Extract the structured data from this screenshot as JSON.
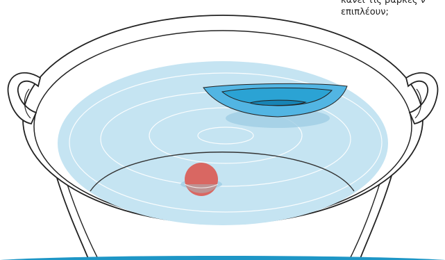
{
  "question": {
    "line1": "κάνει τις βάρκες ν",
    "line2": "επιπλέουν;"
  },
  "colors": {
    "water": "#c5e4f2",
    "boat_outer": "#52b5e3",
    "boat_inner": "#2ba3d4",
    "boat_core": "#1784b5",
    "ball": "#d96762",
    "bottom_stripe": "#1e96c6",
    "outline": "#222222"
  },
  "icons": {
    "boat": "paper-boat-icon",
    "ball": "red-ball-icon",
    "basin": "basin-icon"
  }
}
